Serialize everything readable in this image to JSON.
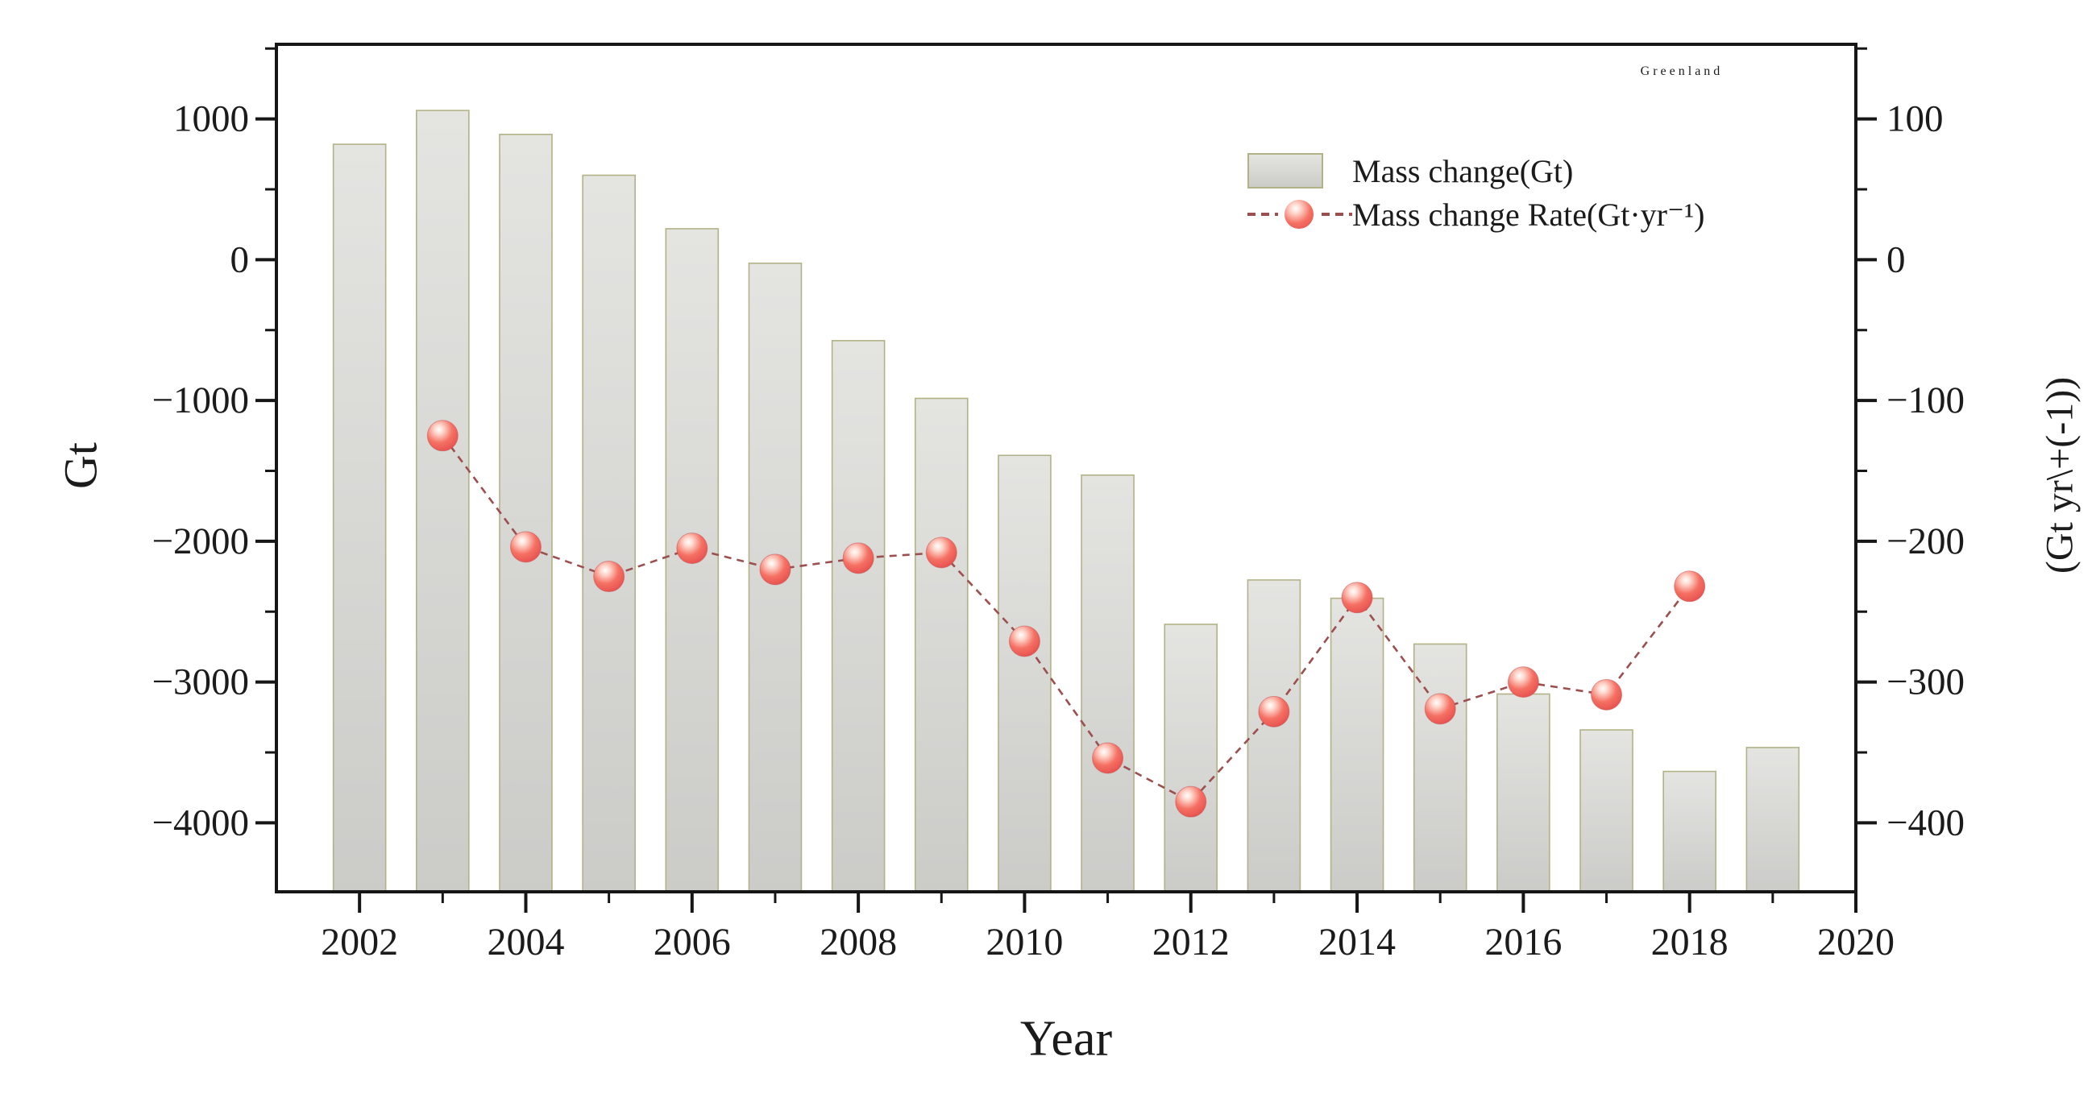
{
  "title": "Greenland",
  "axes": {
    "x": {
      "title": "Year",
      "range": [
        2001,
        2020
      ],
      "major_ticks": [
        2002,
        2004,
        2006,
        2008,
        2010,
        2012,
        2014,
        2016,
        2018,
        2020
      ],
      "minor_ticks": [
        2003,
        2005,
        2007,
        2009,
        2011,
        2013,
        2015,
        2017,
        2019
      ]
    },
    "y_left": {
      "title": "Gt",
      "range": [
        -4490,
        1530
      ],
      "major_ticks": [
        1000,
        0,
        -1000,
        -2000,
        -3000,
        -4000
      ],
      "minor_ticks": [
        1500,
        500,
        -500,
        -1500,
        -2500,
        -3500
      ]
    },
    "y_right": {
      "title": "(Gt yr\\+(-1))",
      "range": [
        -449,
        153
      ],
      "major_ticks": [
        100,
        0,
        -100,
        -200,
        -300,
        -400
      ],
      "minor_ticks": [
        150,
        50,
        -50,
        -150,
        -250,
        -350
      ]
    }
  },
  "legend": [
    {
      "label": "Mass change(Gt)",
      "type": "bar"
    },
    {
      "label": "Mass change Rate(Gt·yr⁻¹)",
      "type": "line-marker"
    }
  ],
  "colors": {
    "bar_fill_top": "#e4e4e1",
    "bar_fill_bottom": "#cbcbc8",
    "bar_edge": "#b2b287",
    "line": "#9c4f4f",
    "marker_main": "#f05a5a",
    "marker_edge": "#e34b4b",
    "frame": "#161616",
    "text": "#1b1b1b",
    "background": "#ffffff"
  },
  "chart_data": {
    "type": "combo",
    "title": "Greenland",
    "xlabel": "Year",
    "ylabel_left": "Gt",
    "ylabel_right": "(Gt yr\\+(-1))",
    "xlim": [
      2001,
      2020
    ],
    "ylim_left": [
      -4490,
      1530
    ],
    "ylim_right": [
      -449,
      153
    ],
    "grid": false,
    "legend_position": "upper-right-inside",
    "categories": [
      2002,
      2003,
      2004,
      2005,
      2006,
      2007,
      2008,
      2009,
      2010,
      2011,
      2012,
      2013,
      2014,
      2015,
      2016,
      2017,
      2018,
      2019
    ],
    "series": [
      {
        "name": "Mass change(Gt)",
        "type": "bar",
        "axis": "left",
        "x": [
          2002,
          2003,
          2004,
          2005,
          2006,
          2007,
          2008,
          2009,
          2010,
          2011,
          2012,
          2013,
          2014,
          2015,
          2016,
          2017,
          2018,
          2019
        ],
        "values": [
          820,
          1060,
          890,
          600,
          220,
          -25,
          -575,
          -985,
          -1390,
          -1530,
          -2590,
          -2275,
          -2405,
          -2730,
          -3085,
          -3340,
          -3635,
          -3465
        ]
      },
      {
        "name": "Mass change Rate(Gt·yr⁻¹)",
        "type": "line",
        "axis": "right",
        "x": [
          2003,
          2004,
          2005,
          2006,
          2007,
          2008,
          2009,
          2010,
          2011,
          2012,
          2013,
          2014,
          2015,
          2016,
          2017,
          2018
        ],
        "values": [
          -125,
          -204,
          -225,
          -205,
          -220,
          -212,
          -208,
          -271,
          -354,
          -385,
          -321,
          -240,
          -319,
          -300,
          -309,
          -232
        ]
      }
    ]
  }
}
